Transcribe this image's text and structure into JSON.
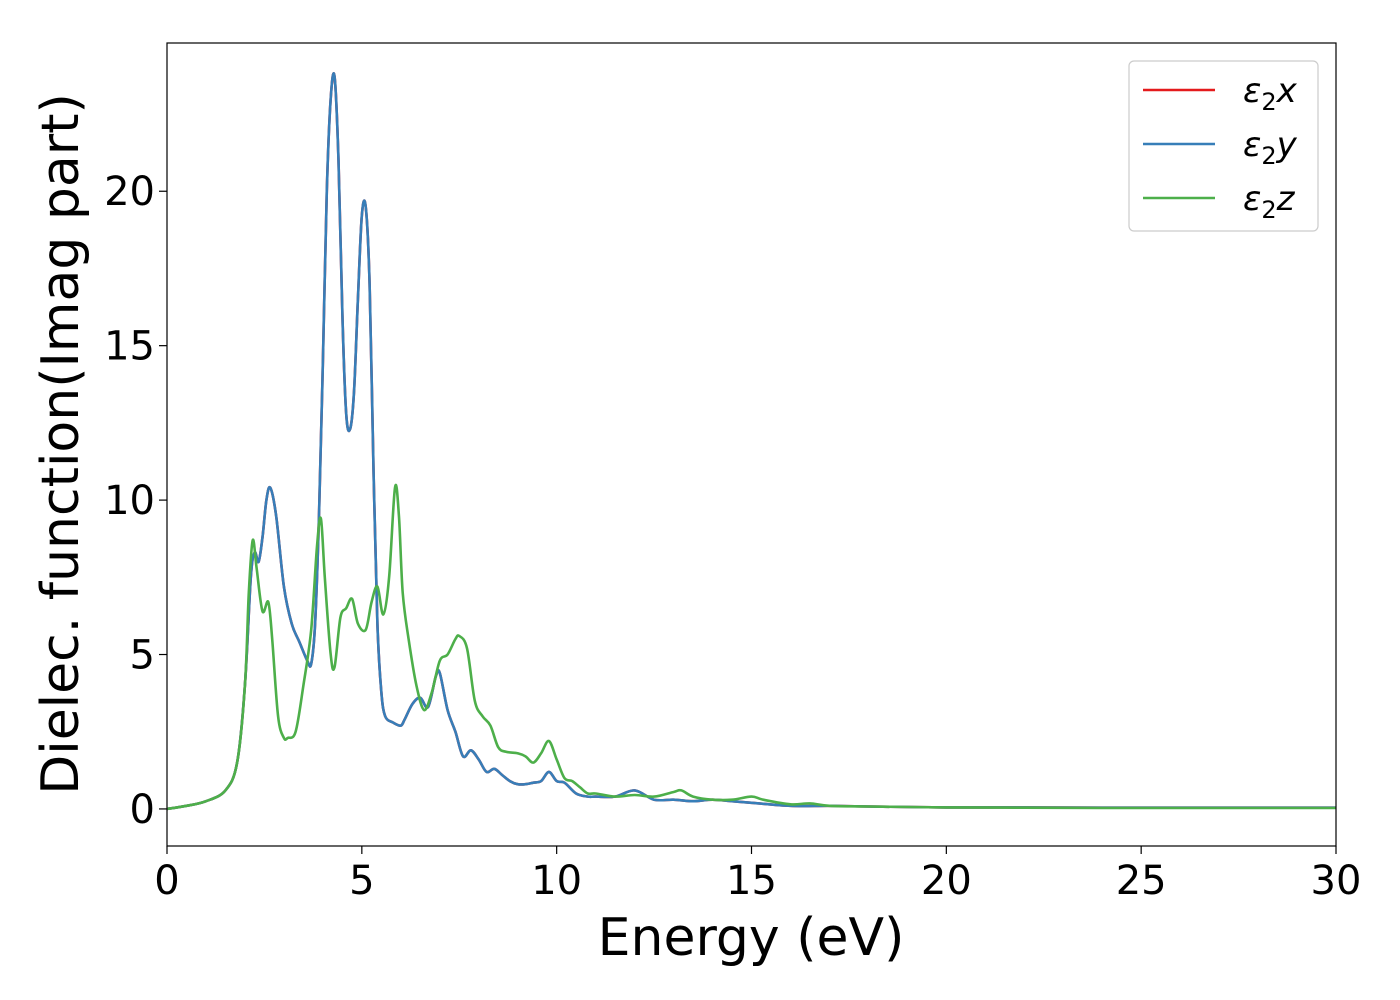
{
  "chart_data": {
    "type": "line",
    "title": "",
    "xlabel": "Energy (eV)",
    "ylabel": "Dielec. function(Imag part)",
    "xlim": [
      0,
      30
    ],
    "ylim": [
      -1.2,
      24.8
    ],
    "xticks": [
      0,
      5,
      10,
      15,
      20,
      25,
      30
    ],
    "yticks": [
      0,
      5,
      10,
      15,
      20
    ],
    "grid": false,
    "legend_position": "top-right",
    "series": [
      {
        "name": "ε2x",
        "legend": {
          "base": "ε",
          "sub": "2",
          "axis": "x"
        },
        "color": "#e41a1c",
        "x": [
          0,
          0.5,
          1.0,
          1.5,
          1.8,
          2.0,
          2.15,
          2.25,
          2.35,
          2.45,
          2.55,
          2.65,
          2.8,
          3.0,
          3.2,
          3.4,
          3.6,
          3.7,
          3.8,
          3.9,
          4.0,
          4.1,
          4.2,
          4.3,
          4.4,
          4.5,
          4.6,
          4.7,
          4.8,
          4.9,
          5.0,
          5.1,
          5.2,
          5.3,
          5.4,
          5.5,
          5.6,
          5.8,
          6.0,
          6.1,
          6.3,
          6.5,
          6.7,
          6.9,
          7.0,
          7.2,
          7.4,
          7.6,
          7.8,
          8.0,
          8.2,
          8.4,
          8.6,
          8.8,
          9.0,
          9.2,
          9.4,
          9.6,
          9.8,
          10.0,
          10.2,
          10.5,
          10.8,
          11.0,
          11.5,
          12.0,
          12.5,
          13.0,
          13.5,
          14.0,
          14.5,
          15.0,
          16.0,
          17.0,
          18.0,
          20.0,
          22.0,
          24.0,
          26.0,
          28.0,
          30.0
        ],
        "values": [
          0.0,
          0.1,
          0.25,
          0.6,
          1.5,
          4.0,
          7.5,
          8.3,
          8.0,
          8.8,
          10.0,
          10.4,
          9.5,
          7.2,
          6.0,
          5.4,
          4.8,
          4.7,
          6.0,
          9.5,
          14.5,
          20.0,
          23.0,
          23.7,
          21.0,
          16.0,
          12.8,
          12.3,
          13.5,
          16.5,
          19.2,
          19.5,
          17.0,
          11.0,
          6.0,
          3.8,
          3.0,
          2.8,
          2.7,
          2.9,
          3.4,
          3.6,
          3.3,
          4.3,
          4.4,
          3.2,
          2.5,
          1.7,
          1.9,
          1.6,
          1.2,
          1.3,
          1.1,
          0.9,
          0.8,
          0.8,
          0.85,
          0.9,
          1.2,
          0.9,
          0.85,
          0.5,
          0.4,
          0.4,
          0.4,
          0.6,
          0.3,
          0.3,
          0.25,
          0.3,
          0.25,
          0.2,
          0.1,
          0.1,
          0.08,
          0.05,
          0.05,
          0.04,
          0.04,
          0.04,
          0.04
        ]
      },
      {
        "name": "ε2y",
        "legend": {
          "base": "ε",
          "sub": "2",
          "axis": "y"
        },
        "color": "#377eb8",
        "x": [
          0,
          0.5,
          1.0,
          1.5,
          1.8,
          2.0,
          2.15,
          2.25,
          2.35,
          2.45,
          2.55,
          2.65,
          2.8,
          3.0,
          3.2,
          3.4,
          3.6,
          3.7,
          3.8,
          3.9,
          4.0,
          4.1,
          4.2,
          4.3,
          4.4,
          4.5,
          4.6,
          4.7,
          4.8,
          4.9,
          5.0,
          5.1,
          5.2,
          5.3,
          5.4,
          5.5,
          5.6,
          5.8,
          6.0,
          6.1,
          6.3,
          6.5,
          6.7,
          6.9,
          7.0,
          7.2,
          7.4,
          7.6,
          7.8,
          8.0,
          8.2,
          8.4,
          8.6,
          8.8,
          9.0,
          9.2,
          9.4,
          9.6,
          9.8,
          10.0,
          10.2,
          10.5,
          10.8,
          11.0,
          11.5,
          12.0,
          12.5,
          13.0,
          13.5,
          14.0,
          14.5,
          15.0,
          16.0,
          17.0,
          18.0,
          20.0,
          22.0,
          24.0,
          26.0,
          28.0,
          30.0
        ],
        "values": [
          0.0,
          0.1,
          0.25,
          0.6,
          1.5,
          4.0,
          7.5,
          8.3,
          8.0,
          8.8,
          10.0,
          10.4,
          9.5,
          7.2,
          6.0,
          5.4,
          4.8,
          4.7,
          6.0,
          9.5,
          14.5,
          20.0,
          23.0,
          23.7,
          21.0,
          16.0,
          12.8,
          12.3,
          13.5,
          16.5,
          19.2,
          19.5,
          17.0,
          11.0,
          6.0,
          3.8,
          3.0,
          2.8,
          2.7,
          2.9,
          3.4,
          3.6,
          3.3,
          4.3,
          4.4,
          3.2,
          2.5,
          1.7,
          1.9,
          1.6,
          1.2,
          1.3,
          1.1,
          0.9,
          0.8,
          0.8,
          0.85,
          0.9,
          1.2,
          0.9,
          0.85,
          0.5,
          0.4,
          0.4,
          0.4,
          0.6,
          0.3,
          0.3,
          0.25,
          0.3,
          0.25,
          0.2,
          0.1,
          0.1,
          0.08,
          0.05,
          0.05,
          0.04,
          0.04,
          0.04,
          0.04
        ]
      },
      {
        "name": "ε2z",
        "legend": {
          "base": "ε",
          "sub": "2",
          "axis": "z"
        },
        "color": "#4daf4a",
        "x": [
          0,
          0.5,
          1.0,
          1.5,
          1.8,
          2.0,
          2.1,
          2.2,
          2.3,
          2.45,
          2.6,
          2.7,
          2.85,
          3.0,
          3.1,
          3.3,
          3.5,
          3.7,
          3.85,
          3.95,
          4.05,
          4.2,
          4.3,
          4.45,
          4.6,
          4.75,
          4.9,
          5.1,
          5.25,
          5.4,
          5.55,
          5.7,
          5.85,
          5.95,
          6.05,
          6.2,
          6.4,
          6.6,
          6.8,
          7.0,
          7.2,
          7.4,
          7.5,
          7.7,
          7.9,
          8.1,
          8.3,
          8.5,
          8.7,
          9.0,
          9.2,
          9.4,
          9.6,
          9.8,
          10.0,
          10.2,
          10.4,
          10.6,
          10.8,
          11.0,
          11.5,
          12.0,
          12.5,
          13.0,
          13.2,
          13.5,
          14.0,
          14.5,
          15.0,
          15.3,
          16.0,
          16.5,
          17.0,
          18.0,
          20.0,
          22.0,
          24.0,
          26.0,
          28.0,
          30.0
        ],
        "values": [
          0.0,
          0.1,
          0.25,
          0.6,
          1.5,
          4.0,
          7.0,
          8.7,
          7.8,
          6.4,
          6.7,
          5.5,
          3.0,
          2.3,
          2.3,
          2.5,
          4.0,
          5.8,
          8.5,
          9.4,
          7.5,
          5.0,
          4.6,
          6.2,
          6.5,
          6.8,
          6.0,
          5.8,
          6.7,
          7.2,
          6.3,
          7.5,
          10.4,
          9.5,
          7.0,
          5.5,
          4.0,
          3.2,
          3.8,
          4.8,
          5.0,
          5.5,
          5.6,
          5.2,
          3.5,
          3.0,
          2.7,
          2.0,
          1.85,
          1.8,
          1.7,
          1.5,
          1.8,
          2.2,
          1.6,
          1.0,
          0.9,
          0.7,
          0.5,
          0.5,
          0.4,
          0.45,
          0.4,
          0.55,
          0.6,
          0.4,
          0.3,
          0.3,
          0.4,
          0.3,
          0.15,
          0.18,
          0.1,
          0.08,
          0.05,
          0.04,
          0.03,
          0.03,
          0.03,
          0.03
        ]
      }
    ]
  }
}
